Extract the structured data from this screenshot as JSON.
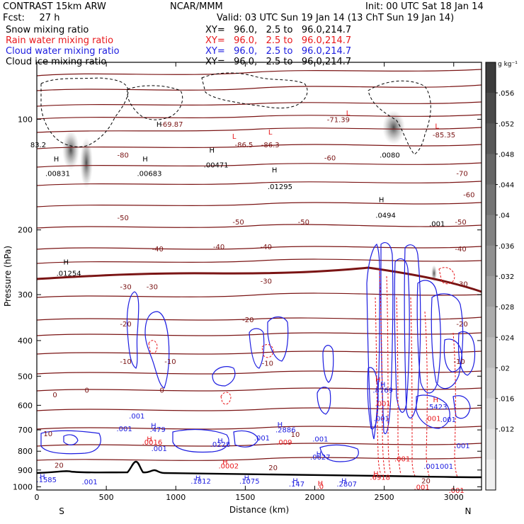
{
  "header": {
    "line1_left": "CONTRAST 15km ARW",
    "line1_center": "NCAR/MMM",
    "line1_right": "Init: 00 UTC Sat 18 Jan 14",
    "line2_left": "Fcst:     27 h",
    "line2_right": "Valid: 03 UTC Sun 19 Jan 14 (13 ChT Sun 19 Jan 14)",
    "fields": [
      {
        "name": "Snow mixing ratio",
        "xy": "XY=   96.0,   2.5 to   96.0,214.7",
        "color": "#000000"
      },
      {
        "name": "Rain water mixing ratio",
        "xy": "XY=   96.0,   2.5 to   96.0,214.7",
        "color": "#e8181c"
      },
      {
        "name": "Cloud water mixing ratio",
        "xy": "XY=   96.0,   2.5 to   96.0,214.7",
        "color": "#1c1ce0"
      },
      {
        "name": "Cloud ice mixing ratio",
        "xy": "XY=   96.0,   2.5 to   96.0,214.7",
        "color": "#000000"
      }
    ]
  },
  "chart_data": {
    "type": "contour",
    "xlabel": "Distance (km)",
    "ylabel": "Pressure (hPa)",
    "x_ticks": [
      0,
      500,
      1000,
      1500,
      2000,
      2500,
      3000
    ],
    "y_ticks": [
      100,
      200,
      300,
      400,
      500,
      600,
      700,
      800,
      900,
      1000
    ],
    "xlim": [
      0,
      3200
    ],
    "ylim": [
      1020,
      70
    ],
    "y_scale": "log",
    "end_labels": {
      "left": "S",
      "right": "N"
    },
    "colorbar": {
      "unit": "g kg⁻¹",
      "ticks": [
        ".056",
        ".052",
        ".048",
        ".044",
        ".04",
        ".036",
        ".032",
        ".028",
        ".024",
        ".02",
        ".016",
        ".012"
      ],
      "shades": [
        "#3c3c3c",
        "#4a4a4a",
        "#585858",
        "#666666",
        "#747474",
        "#828282",
        "#909090",
        "#9e9e9e",
        "#acacac",
        "#bababa",
        "#c8c8c8",
        "#d6d6d6",
        "#e4e4e4",
        "#f0f0f0"
      ]
    },
    "temperature_labels": [
      {
        "text": "-69.87",
        "x": 970,
        "p": 103
      },
      {
        "text": "-71.39",
        "x": 2170,
        "p": 100
      },
      {
        "text": "-85.35",
        "x": 2930,
        "p": 110
      },
      {
        "text": "-86.5",
        "x": 1490,
        "p": 117
      },
      {
        "text": "-86.3",
        "x": 1680,
        "p": 117
      },
      {
        "text": "-80",
        "x": 620,
        "p": 125
      },
      {
        "text": "-60",
        "x": 2110,
        "p": 127
      },
      {
        "text": "-70",
        "x": 3060,
        "p": 140
      },
      {
        "text": "-60",
        "x": 3110,
        "p": 160
      },
      {
        "text": "-50",
        "x": 620,
        "p": 185
      },
      {
        "text": "-50",
        "x": 1450,
        "p": 190
      },
      {
        "text": "-50",
        "x": 1920,
        "p": 190
      },
      {
        "text": "-50",
        "x": 3050,
        "p": 190
      },
      {
        "text": "-40",
        "x": 870,
        "p": 225
      },
      {
        "text": "-40",
        "x": 1310,
        "p": 222
      },
      {
        "text": "-40",
        "x": 1650,
        "p": 222
      },
      {
        "text": "-40",
        "x": 3050,
        "p": 225
      },
      {
        "text": "-30",
        "x": 640,
        "p": 285
      },
      {
        "text": "-30",
        "x": 830,
        "p": 285
      },
      {
        "text": "-30",
        "x": 1650,
        "p": 275
      },
      {
        "text": "-30",
        "x": 3060,
        "p": 280
      },
      {
        "text": "-20",
        "x": 640,
        "p": 360
      },
      {
        "text": "-20",
        "x": 1520,
        "p": 350
      },
      {
        "text": "-20",
        "x": 3060,
        "p": 360
      },
      {
        "text": "-10",
        "x": 640,
        "p": 455
      },
      {
        "text": "-10",
        "x": 960,
        "p": 455
      },
      {
        "text": "-10",
        "x": 1660,
        "p": 460
      },
      {
        "text": "-10",
        "x": 3040,
        "p": 455
      },
      {
        "text": "0",
        "x": 130,
        "p": 560
      },
      {
        "text": "0",
        "x": 360,
        "p": 545
      },
      {
        "text": "0",
        "x": 900,
        "p": 545
      },
      {
        "text": "10",
        "x": 80,
        "p": 715
      },
      {
        "text": "10",
        "x": 1860,
        "p": 718
      },
      {
        "text": "20",
        "x": 160,
        "p": 872
      },
      {
        "text": "20",
        "x": 1700,
        "p": 886
      },
      {
        "text": "20",
        "x": 2800,
        "p": 960
      }
    ],
    "max_labels": [
      {
        "text": "H",
        "x": 880,
        "p": 103,
        "c": "#000000"
      },
      {
        "text": "L",
        "x": 1420,
        "p": 111,
        "c": "#e8181c"
      },
      {
        "text": "L",
        "x": 1680,
        "p": 108,
        "c": "#e8181c"
      },
      {
        "text": "L",
        "x": 2240,
        "p": 96,
        "c": "#e8181c"
      },
      {
        "text": "L",
        "x": 2880,
        "p": 104,
        "c": "#e8181c"
      },
      {
        "text": "83.2",
        "x": 10,
        "p": 117,
        "c": "#000000"
      },
      {
        "text": "H",
        "x": 140,
        "p": 128,
        "c": "#000000"
      },
      {
        "text": ".00831",
        "x": 150,
        "p": 140,
        "c": "#000000"
      },
      {
        "text": "H",
        "x": 780,
        "p": 128,
        "c": "#000000"
      },
      {
        "text": ".00683",
        "x": 810,
        "p": 140,
        "c": "#000000"
      },
      {
        "text": "H",
        "x": 1260,
        "p": 121,
        "c": "#000000"
      },
      {
        "text": ".00471",
        "x": 1290,
        "p": 133,
        "c": "#000000"
      },
      {
        "text": "H",
        "x": 1710,
        "p": 137,
        "c": "#000000"
      },
      {
        "text": ".01295",
        "x": 1750,
        "p": 152,
        "c": "#000000"
      },
      {
        "text": ".0080",
        "x": 2540,
        "p": 125,
        "c": "#000000"
      },
      {
        "text": "H",
        "x": 2480,
        "p": 165,
        "c": "#000000"
      },
      {
        "text": ".0494",
        "x": 2510,
        "p": 182,
        "c": "#000000"
      },
      {
        "text": ".001",
        "x": 2880,
        "p": 192,
        "c": "#000000"
      },
      {
        "text": "H",
        "x": 210,
        "p": 244,
        "c": "#000000"
      },
      {
        "text": ".01254",
        "x": 230,
        "p": 262,
        "c": "#000000"
      },
      {
        "text": "H",
        "x": 2455,
        "p": 510,
        "c": "#e8181c"
      },
      {
        "text": "H",
        "x": 2490,
        "p": 526,
        "c": "#1c1ce0"
      },
      {
        "text": ".8769",
        "x": 2490,
        "p": 545,
        "c": "#1c1ce0"
      },
      {
        "text": "H",
        "x": 2870,
        "p": 578,
        "c": "#e8181c"
      },
      {
        "text": ".5423",
        "x": 2880,
        "p": 605,
        "c": "#1c1ce0"
      },
      {
        "text": ".001",
        "x": 2490,
        "p": 592,
        "c": "#e8181c"
      },
      {
        "text": ".001",
        "x": 2480,
        "p": 650,
        "c": "#1c1ce0"
      },
      {
        "text": ".001",
        "x": 2960,
        "p": 654,
        "c": "#1c1ce0"
      },
      {
        "text": ".001",
        "x": 2850,
        "p": 650,
        "c": "#e8181c"
      },
      {
        "text": ".001",
        "x": 720,
        "p": 640,
        "c": "#1c1ce0"
      },
      {
        "text": ".001",
        "x": 630,
        "p": 694,
        "c": "#1c1ce0"
      },
      {
        "text": "H",
        "x": 840,
        "p": 680,
        "c": "#1c1ce0"
      },
      {
        "text": ".479",
        "x": 870,
        "p": 697,
        "c": "#1c1ce0"
      },
      {
        "text": "H",
        "x": 810,
        "p": 740,
        "c": "#e8181c"
      },
      {
        "text": ".0016",
        "x": 830,
        "p": 755,
        "c": "#e8181c"
      },
      {
        "text": ".001",
        "x": 880,
        "p": 785,
        "c": "#1c1ce0"
      },
      {
        "text": "H",
        "x": 1320,
        "p": 748,
        "c": "#1c1ce0"
      },
      {
        "text": ".0228",
        "x": 1320,
        "p": 765,
        "c": "#1c1ce0"
      },
      {
        "text": "H",
        "x": 1355,
        "p": 855,
        "c": "#e8181c"
      },
      {
        "text": ".0002",
        "x": 1380,
        "p": 875,
        "c": "#e8181c"
      },
      {
        "text": "H",
        "x": 1750,
        "p": 675,
        "c": "#1c1ce0"
      },
      {
        "text": ".2886",
        "x": 1790,
        "p": 698,
        "c": "#1c1ce0"
      },
      {
        "text": ".001",
        "x": 1620,
        "p": 735,
        "c": "#1c1ce0"
      },
      {
        "text": ".009",
        "x": 1780,
        "p": 755,
        "c": "#e8181c"
      },
      {
        "text": ".001",
        "x": 2040,
        "p": 740,
        "c": "#1c1ce0"
      },
      {
        "text": "H",
        "x": 2030,
        "p": 812,
        "c": "#1c1ce0"
      },
      {
        "text": ".0627",
        "x": 2040,
        "p": 828,
        "c": "#1c1ce0"
      },
      {
        "text": "H",
        "x": 40,
        "p": 935,
        "c": "#1c1ce0"
      },
      {
        "text": ".1585",
        "x": 70,
        "p": 955,
        "c": "#1c1ce0"
      },
      {
        "text": ".001",
        "x": 380,
        "p": 968,
        "c": "#1c1ce0"
      },
      {
        "text": "H",
        "x": 1160,
        "p": 943,
        "c": "#1c1ce0"
      },
      {
        "text": ".1812",
        "x": 1180,
        "p": 963,
        "c": "#1c1ce0"
      },
      {
        "text": "H",
        "x": 1510,
        "p": 943,
        "c": "#1c1ce0"
      },
      {
        "text": ".1075",
        "x": 1530,
        "p": 963,
        "c": "#1c1ce0"
      },
      {
        "text": "H",
        "x": 1860,
        "p": 960,
        "c": "#1c1ce0"
      },
      {
        "text": ".147",
        "x": 1870,
        "p": 980,
        "c": "#1c1ce0"
      },
      {
        "text": "H",
        "x": 2040,
        "p": 975,
        "c": "#e8181c"
      },
      {
        "text": ".0",
        "x": 2040,
        "p": 995,
        "c": "#e8181c"
      },
      {
        "text": "H",
        "x": 2210,
        "p": 960,
        "c": "#1c1ce0"
      },
      {
        "text": ".2807",
        "x": 2230,
        "p": 980,
        "c": "#1c1ce0"
      },
      {
        "text": "H",
        "x": 2440,
        "p": 920,
        "c": "#e8181c"
      },
      {
        "text": ".6918",
        "x": 2470,
        "p": 940,
        "c": "#e8181c"
      },
      {
        "text": ".001",
        "x": 2630,
        "p": 838,
        "c": "#e8181c"
      },
      {
        "text": ".001",
        "x": 2770,
        "p": 1000,
        "c": "#e8181c"
      },
      {
        "text": ".001",
        "x": 3020,
        "p": 1020,
        "c": "#e8181c"
      },
      {
        "text": ".001",
        "x": 3060,
        "p": 772,
        "c": "#1c1ce0"
      },
      {
        "text": ".001",
        "x": 2840,
        "p": 878,
        "c": "#1c1ce0"
      },
      {
        "text": ".001",
        "x": 2940,
        "p": 878,
        "c": "#1c1ce0"
      }
    ]
  }
}
